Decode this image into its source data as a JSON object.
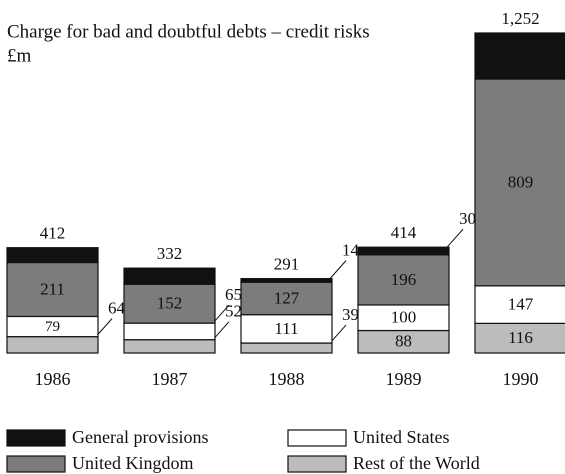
{
  "chart_data": {
    "type": "stacked-bar",
    "title": "Charge for bad and doubtful debts – credit risks",
    "subtitle": "£m",
    "categories": [
      "1986",
      "1987",
      "1988",
      "1989",
      "1990"
    ],
    "series": [
      {
        "name": "General provisions",
        "color": "#111111",
        "values": [
          58,
          63,
          14,
          30,
          180
        ],
        "value_labels": [
          null,
          null,
          "14",
          "30",
          null
        ]
      },
      {
        "name": "United Kingdom",
        "color": "#7c7c7c",
        "values": [
          211,
          152,
          127,
          196,
          809
        ]
      },
      {
        "name": "United States",
        "color": "#ffffff",
        "values": [
          79,
          65,
          111,
          100,
          147
        ]
      },
      {
        "name": "Rest of the World",
        "color": "#bcbcbc",
        "values": [
          64,
          52,
          39,
          88,
          116
        ]
      }
    ],
    "totals": [
      412,
      332,
      291,
      414,
      1252
    ],
    "total_labels": [
      "412",
      "332",
      "291",
      "414",
      "1,252"
    ]
  }
}
